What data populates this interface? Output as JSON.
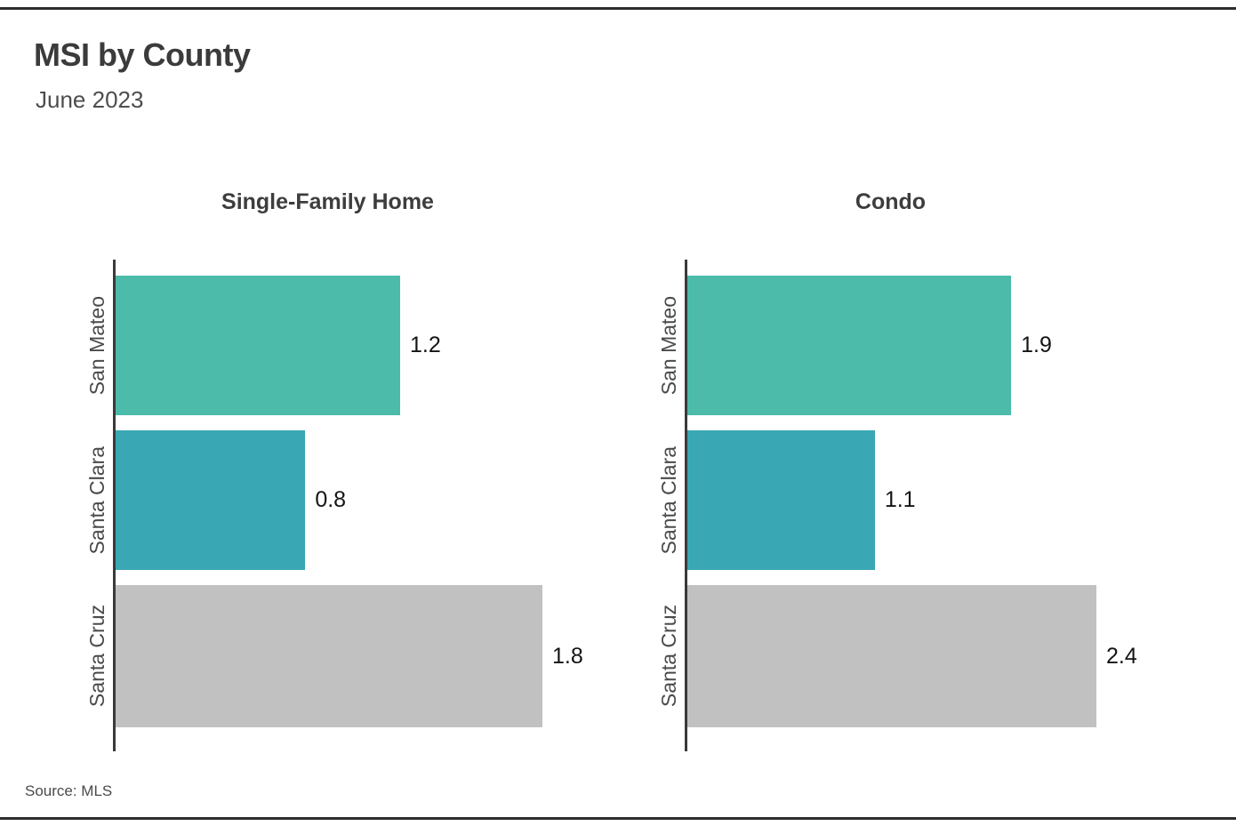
{
  "header": {
    "title": "MSI by County",
    "subtitle": "June 2023"
  },
  "footer": {
    "source": "Source: MLS"
  },
  "colors": {
    "san_mateo_bar": "#4CBBAA",
    "santa_clara_bar": "#39A7B4",
    "santa_cruz_bar": "#C1C1C1",
    "axis_line": "#3a3a3a",
    "page_rule": "#2d2d2d",
    "title_text": "#3b3b3b",
    "value_text": "#141414"
  },
  "chart_data": [
    {
      "type": "bar",
      "orientation": "horizontal",
      "title": "Single-Family Home",
      "categories": [
        "San Mateo",
        "Santa Clara",
        "Santa Cruz"
      ],
      "values": [
        1.2,
        0.8,
        1.8
      ],
      "value_labels": [
        "1.2",
        "0.8",
        "1.8"
      ],
      "bar_colors": [
        "#4CBBAA",
        "#39A7B4",
        "#C1C1C1"
      ],
      "xlim": [
        0,
        1.8
      ],
      "grid": false,
      "legend": "none",
      "value_label_position": "right-of-bar"
    },
    {
      "type": "bar",
      "orientation": "horizontal",
      "title": "Condo",
      "categories": [
        "San Mateo",
        "Santa Clara",
        "Santa Cruz"
      ],
      "values": [
        1.9,
        1.1,
        2.4
      ],
      "value_labels": [
        "1.9",
        "1.1",
        "2.4"
      ],
      "bar_colors": [
        "#4CBBAA",
        "#39A7B4",
        "#C1C1C1"
      ],
      "xlim": [
        0,
        2.4
      ],
      "grid": false,
      "legend": "none",
      "value_label_position": "right-of-bar"
    }
  ]
}
